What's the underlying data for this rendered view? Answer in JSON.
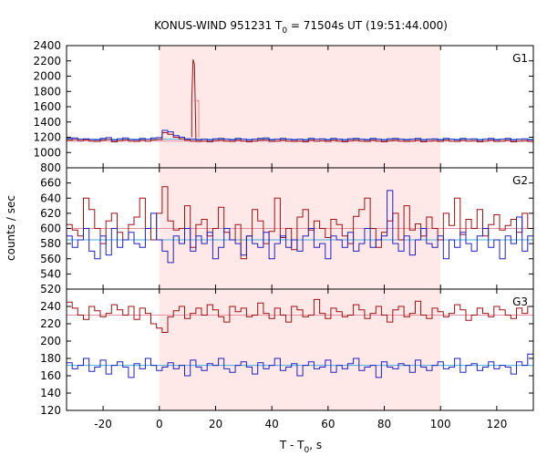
{
  "chart_data": {
    "type": "line",
    "title": "KONUS-WIND 951231 T",
    "title_sub": "0",
    "title_rest": " = 71504s UT (19:51:44.000)",
    "xlabel": "T - T",
    "xlabel_sub": "0",
    "xlabel_rest": ", s",
    "ylabel": "counts / sec",
    "xlim": [
      -33,
      133
    ],
    "x_ticks": [
      -20,
      0,
      20,
      40,
      60,
      80,
      100,
      120
    ],
    "highlight_interval": [
      0,
      100
    ],
    "colors": {
      "red": "#a01010",
      "blue": "#2020c0",
      "red_bg": "#f08080",
      "blue_bg": "#40b0e0",
      "shade": "#ffe8e8",
      "pink_line": "#e090a0"
    },
    "panels": [
      {
        "label": "G1",
        "ylim": [
          800,
          2400
        ],
        "y_ticks": [
          800,
          1000,
          1200,
          1400,
          1600,
          1800,
          2000,
          2200,
          2400
        ],
        "bin": 2.0,
        "series": [
          {
            "name": "",
            "color": "red",
            "background": 1150,
            "values": [
              1160,
              1170,
              1155,
              1165,
              1150,
              1145,
              1160,
              1170,
              1140,
              1155,
              1165,
              1150,
              1145,
              1160,
              1150,
              1165,
              1170,
              1260,
              1240,
              1200,
              1180,
              1160,
              1150,
              1145,
              1150,
              1140,
              1155,
              1160,
              1150,
              1145,
              1160,
              1150,
              1140,
              1150,
              1160,
              1165,
              1145,
              1150,
              1160,
              1150,
              1145,
              1150,
              1140,
              1160,
              1150,
              1155,
              1145,
              1160,
              1150,
              1140,
              1155,
              1160,
              1150,
              1145,
              1160,
              1150,
              1140,
              1155,
              1160,
              1150,
              1145,
              1150,
              1160,
              1140,
              1150,
              1155,
              1145,
              1160,
              1150,
              1145,
              1160,
              1150,
              1155,
              1140,
              1150,
              1160,
              1145,
              1150,
              1160,
              1140,
              1150,
              1155,
              1145
            ]
          },
          {
            "name": "",
            "color": "blue",
            "background": 1175,
            "values": [
              1185,
              1190,
              1175,
              1180,
              1170,
              1165,
              1185,
              1195,
              1160,
              1180,
              1190,
              1170,
              1165,
              1185,
              1175,
              1190,
              1195,
              1290,
              1270,
              1220,
              1200,
              1180,
              1175,
              1165,
              1175,
              1160,
              1180,
              1185,
              1175,
              1165,
              1185,
              1175,
              1160,
              1175,
              1185,
              1190,
              1165,
              1175,
              1185,
              1175,
              1165,
              1175,
              1160,
              1185,
              1175,
              1180,
              1165,
              1185,
              1175,
              1160,
              1180,
              1185,
              1175,
              1165,
              1185,
              1175,
              1160,
              1180,
              1185,
              1175,
              1165,
              1175,
              1185,
              1160,
              1175,
              1180,
              1165,
              1185,
              1175,
              1165,
              1185,
              1175,
              1180,
              1160,
              1175,
              1185,
              1165,
              1175,
              1185,
              1160,
              1175,
              1180,
              1165
            ]
          }
        ],
        "spike": {
          "t": [
            11.5,
            12.0,
            12.5,
            13.0
          ],
          "values": [
            1680,
            2220,
            2150,
            1180
          ]
        }
      },
      {
        "label": "G2",
        "ylim": [
          520,
          680
        ],
        "y_ticks": [
          520,
          540,
          560,
          580,
          600,
          620,
          640,
          660
        ],
        "bin": 2.0,
        "series": [
          {
            "name": "",
            "color": "red",
            "background": 600,
            "values": [
              605,
              598,
              590,
              640,
              625,
              600,
              580,
              610,
              620,
              595,
              585,
              605,
              615,
              640,
              600,
              585,
              620,
              655,
              610,
              598,
              600,
              630,
              575,
              605,
              612,
              590,
              600,
              628,
              595,
              585,
              605,
              560,
              590,
              625,
              610,
              580,
              596,
              640,
              588,
              600,
              572,
              615,
              625,
              598,
              610,
              600,
              588,
              612,
              605,
              590,
              580,
              616,
              625,
              640,
              600,
              575,
              595,
              610,
              620,
              585,
              630,
              598,
              606,
              590,
              615,
              600,
              585,
              620,
              604,
              640,
              592,
              612,
              600,
              625,
              590,
              605,
              618,
              598,
              604,
              612,
              595,
              620,
              600
            ]
          },
          {
            "name": "",
            "color": "blue",
            "background": 585,
            "values": [
              590,
              575,
              585,
              600,
              570,
              560,
              590,
              565,
              600,
              575,
              585,
              595,
              580,
              575,
              600,
              620,
              585,
              570,
              555,
              590,
              580,
              600,
              570,
              590,
              580,
              595,
              560,
              575,
              600,
              585,
              580,
              565,
              590,
              580,
              575,
              595,
              560,
              580,
              590,
              575,
              585,
              570,
              590,
              600,
              575,
              580,
              560,
              590,
              585,
              575,
              595,
              570,
              580,
              600,
              575,
              585,
              590,
              650,
              580,
              570,
              590,
              565,
              585,
              600,
              580,
              575,
              590,
              560,
              585,
              575,
              595,
              580,
              570,
              590,
              600,
              575,
              585,
              560,
              590,
              580,
              615,
              570,
              590
            ]
          }
        ]
      },
      {
        "label": "G3",
        "ylim": [
          120,
          260
        ],
        "y_ticks": [
          120,
          140,
          160,
          180,
          200,
          220,
          240
        ],
        "bin": 2.0,
        "series": [
          {
            "name": "",
            "color": "red",
            "background": 230,
            "values": [
              245,
              238,
              230,
              225,
              240,
              235,
              228,
              232,
              242,
              236,
              230,
              240,
              225,
              238,
              232,
              220,
              215,
              210,
              228,
              235,
              240,
              226,
              232,
              238,
              230,
              242,
              236,
              228,
              222,
              240,
              234,
              238,
              228,
              230,
              244,
              232,
              226,
              238,
              230,
              222,
              240,
              236,
              228,
              230,
              248,
              232,
              226,
              238,
              234,
              228,
              230,
              242,
              236,
              226,
              232,
              240,
              230,
              222,
              236,
              240,
              228,
              232,
              246,
              230,
              226,
              238,
              234,
              228,
              232,
              242,
              236,
              224,
              230,
              238,
              232,
              228,
              240,
              236,
              230,
              226,
              238,
              232,
              240
            ]
          },
          {
            "name": "",
            "color": "blue",
            "background": 172,
            "values": [
              175,
              168,
              172,
              180,
              165,
              170,
              178,
              162,
              172,
              176,
              170,
              158,
              174,
              168,
              180,
              172,
              166,
              170,
              175,
              168,
              172,
              160,
              178,
              170,
              166,
              174,
              172,
              180,
              168,
              164,
              172,
              176,
              170,
              162,
              175,
              168,
              172,
              180,
              166,
              170,
              174,
              160,
              172,
              176,
              168,
              170,
              178,
              164,
              172,
              168,
              174,
              180,
              166,
              170,
              172,
              158,
              176,
              170,
              168,
              174,
              172,
              164,
              178,
              170,
              166,
              172,
              176,
              168,
              170,
              180,
              164,
              172,
              174,
              166,
              170,
              176,
              168,
              172,
              170,
              162,
              176,
              172,
              185
            ]
          }
        ]
      }
    ]
  }
}
